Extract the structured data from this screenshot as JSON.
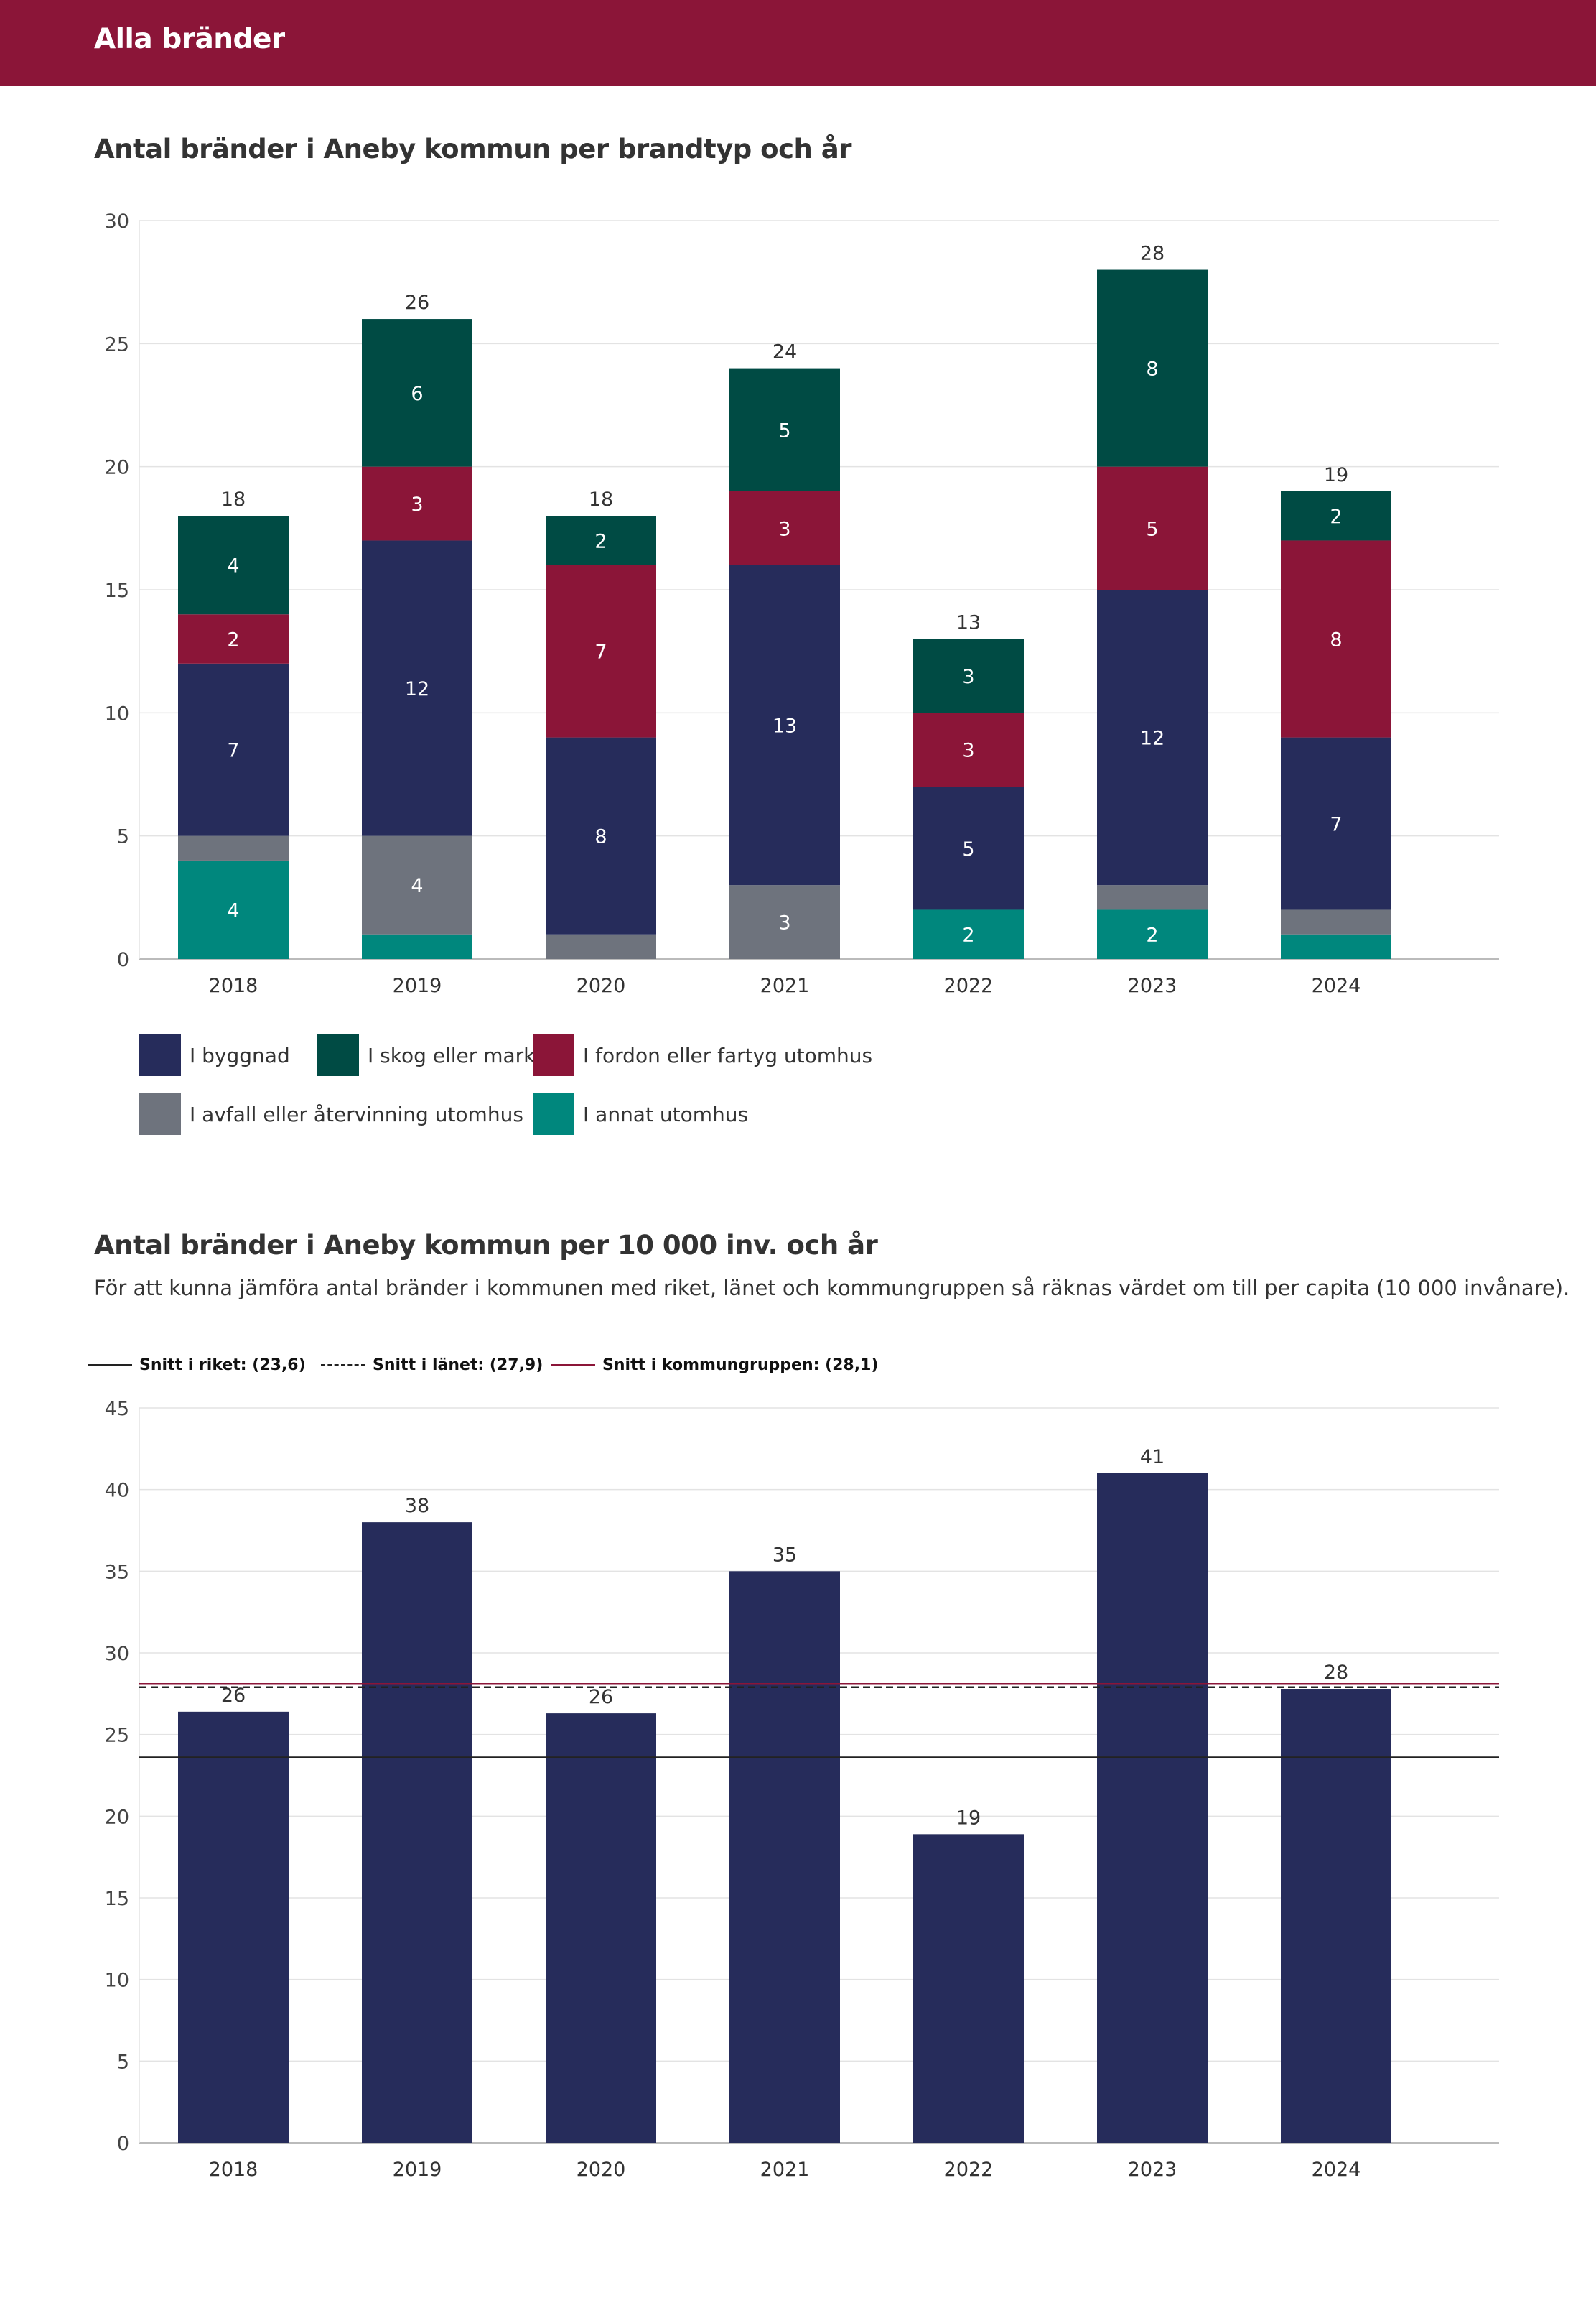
{
  "header": {
    "title": "Alla bränder"
  },
  "section1": {
    "title": "Antal bränder i Aneby kommun per brandtyp och år"
  },
  "section2": {
    "title": "Antal bränder i Aneby kommun per 10 000 inv. och år",
    "subtitle": "För att kunna jämföra antal bränder i kommunen med riket, länet och kommungruppen så räknas värdet om till per capita (10 000 invånare)."
  },
  "colors": {
    "header_bg": "#8B1538",
    "byggnad": "#262C5B",
    "skog": "#004B44",
    "fordon": "#8B1538",
    "avfall": "#6E737D",
    "annat": "#00877D"
  },
  "chart_data": [
    {
      "type": "bar",
      "stacked": true,
      "title": "Antal bränder i Aneby kommun per brandtyp och år",
      "categories": [
        "2018",
        "2019",
        "2020",
        "2021",
        "2022",
        "2023",
        "2024"
      ],
      "series": [
        {
          "name": "I annat utomhus",
          "key": "annat",
          "values": [
            4,
            1,
            0,
            0,
            2,
            2,
            1
          ]
        },
        {
          "name": "I avfall eller återvinning utomhus",
          "key": "avfall",
          "values": [
            1,
            4,
            1,
            3,
            0,
            1,
            1
          ]
        },
        {
          "name": "I byggnad",
          "key": "byggnad",
          "values": [
            7,
            12,
            8,
            13,
            5,
            12,
            7
          ]
        },
        {
          "name": "I fordon eller fartyg utomhus",
          "key": "fordon",
          "values": [
            2,
            3,
            7,
            3,
            3,
            5,
            8
          ]
        },
        {
          "name": "I skog eller mark",
          "key": "skog",
          "values": [
            4,
            6,
            2,
            5,
            3,
            8,
            2
          ]
        }
      ],
      "totals": [
        18,
        26,
        18,
        24,
        13,
        28,
        19
      ],
      "ylim": [
        0,
        30
      ],
      "yticks": [
        0,
        5,
        10,
        15,
        20,
        25,
        30
      ],
      "legend": [
        {
          "name": "I byggnad",
          "key": "byggnad"
        },
        {
          "name": "I skog eller mark",
          "key": "skog"
        },
        {
          "name": "I fordon eller fartyg utomhus",
          "key": "fordon"
        },
        {
          "name": "I avfall eller återvinning utomhus",
          "key": "avfall"
        },
        {
          "name": "I annat utomhus",
          "key": "annat"
        }
      ]
    },
    {
      "type": "bar",
      "title": "Antal bränder i Aneby kommun per 10 000 inv. och år",
      "categories": [
        "2018",
        "2019",
        "2020",
        "2021",
        "2022",
        "2023",
        "2024"
      ],
      "values": [
        26.4,
        38,
        26.3,
        35,
        18.9,
        41,
        27.8
      ],
      "labels": [
        "26",
        "38",
        "26",
        "35",
        "19",
        "41",
        "28"
      ],
      "ylim": [
        0,
        45
      ],
      "yticks": [
        0,
        5,
        10,
        15,
        20,
        25,
        30,
        35,
        40,
        45
      ],
      "reference_lines": [
        {
          "name": "Snitt i riket",
          "label": "Snitt i riket: (23,6)",
          "value": 23.6,
          "style": "solid",
          "color": "#222222"
        },
        {
          "name": "Snitt i länet",
          "label": "Snitt i länet: (27,9)",
          "value": 27.9,
          "style": "dashed",
          "color": "#222222"
        },
        {
          "name": "Snitt i kommungruppen",
          "label": "Snitt i kommungruppen: (28,1)",
          "value": 28.1,
          "style": "solid",
          "color": "#8B1538"
        }
      ]
    }
  ]
}
